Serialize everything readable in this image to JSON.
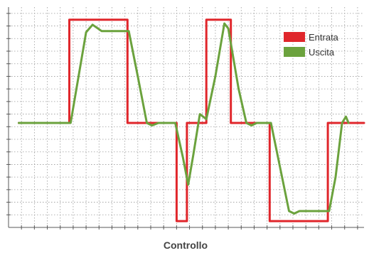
{
  "chart_data": {
    "type": "line",
    "title": "",
    "xlabel": "Controllo",
    "ylabel": "",
    "xlim": [
      0,
      27.5
    ],
    "ylim": [
      0,
      17.5
    ],
    "grid": true,
    "legend_position": "top-right",
    "series": [
      {
        "name": "Entrata",
        "color": "#e0262b",
        "points": [
          [
            0.8,
            8.3
          ],
          [
            4.7,
            8.3
          ],
          [
            4.7,
            16.5
          ],
          [
            9.2,
            16.5
          ],
          [
            9.2,
            8.3
          ],
          [
            13.0,
            8.3
          ],
          [
            13.0,
            0.5
          ],
          [
            13.8,
            0.5
          ],
          [
            13.8,
            8.3
          ],
          [
            15.3,
            8.3
          ],
          [
            15.3,
            16.5
          ],
          [
            17.2,
            16.5
          ],
          [
            17.2,
            8.3
          ],
          [
            20.2,
            8.3
          ],
          [
            20.2,
            0.5
          ],
          [
            24.7,
            0.5
          ],
          [
            24.7,
            8.3
          ],
          [
            27.5,
            8.3
          ]
        ]
      },
      {
        "name": "Uscita",
        "color": "#6ba23d",
        "points": [
          [
            0.8,
            8.3
          ],
          [
            4.8,
            8.3
          ],
          [
            5.5,
            12.5
          ],
          [
            6.0,
            15.5
          ],
          [
            6.5,
            16.1
          ],
          [
            7.2,
            15.6
          ],
          [
            9.3,
            15.6
          ],
          [
            10.0,
            12.0
          ],
          [
            10.7,
            8.3
          ],
          [
            11.1,
            8.1
          ],
          [
            11.6,
            8.3
          ],
          [
            12.9,
            8.3
          ],
          [
            13.5,
            5.5
          ],
          [
            13.9,
            3.4
          ],
          [
            14.3,
            5.8
          ],
          [
            14.8,
            9.0
          ],
          [
            15.3,
            8.6
          ],
          [
            16.0,
            12.0
          ],
          [
            16.7,
            16.2
          ],
          [
            17.0,
            15.8
          ],
          [
            17.8,
            11.0
          ],
          [
            18.4,
            8.3
          ],
          [
            18.8,
            8.1
          ],
          [
            19.2,
            8.3
          ],
          [
            20.3,
            8.3
          ],
          [
            21.0,
            4.8
          ],
          [
            21.7,
            1.3
          ],
          [
            22.1,
            1.1
          ],
          [
            22.5,
            1.3
          ],
          [
            24.8,
            1.3
          ],
          [
            25.3,
            4.0
          ],
          [
            25.8,
            8.3
          ],
          [
            26.1,
            8.8
          ],
          [
            26.3,
            8.3
          ]
        ]
      }
    ],
    "legend": {
      "entries": [
        {
          "label": "Entrata",
          "color": "#e0262b"
        },
        {
          "label": "Uscita",
          "color": "#6ba23d"
        }
      ]
    }
  }
}
